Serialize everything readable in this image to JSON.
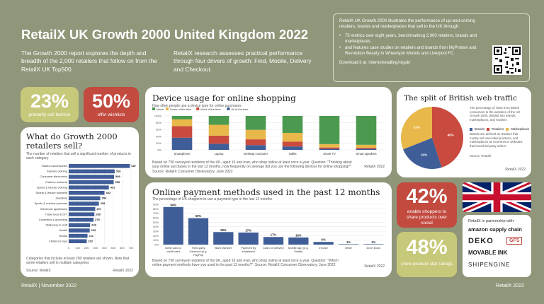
{
  "header": {
    "title": "RetailX UK Growth 2000 United Kingdom 2022",
    "intro_left": "The Growth 2000 report explores the depth and breadth of the 2,000 retailers that follow on from the RetailX UK Top500.",
    "intro_right": "RetailX research assesses practical performance through four drivers of growth: Find, Mobile, Delivery and Checkout."
  },
  "info_box": {
    "text": "RetailX UK Growth 2000 illustrates the performance of up-and-coming retailers, brands and marketplaces that sell to the UK through:",
    "bullets": [
      "75 metrics over eight years, benchmarking 2,000 retailers, brands and marketplaces.",
      "and features case studies on retailers and brands from MyProtein and Revolution Beauty to Wheelspin Models and Liverpool FC."
    ],
    "download": "Download it at: internetretailing/rxguk/"
  },
  "stats": {
    "s1": {
      "value": "23%",
      "label": "primarily sell fashion",
      "color": "#c7c97a"
    },
    "s2": {
      "value": "50%",
      "label": "offer wishlists",
      "color": "#c24a3f"
    },
    "s3": {
      "value": "42%",
      "label": "enable shoppers to share products over social",
      "color": "#c24a3f"
    },
    "s4": {
      "value": "48%",
      "label": "show product star ratings",
      "color": "#c7c97a"
    }
  },
  "categories_chart": {
    "title": "What do Growth 2000 retailers sell?",
    "subtitle": "The number of retailers that sell a significant number of products in each category",
    "note": "Categories that include at least 200 retailers are shown. Note that some retailers sell in multiple categories",
    "source": "Source: RetailX",
    "brand": "RetailX 2022"
  },
  "device_chart": {
    "title": "Device usage for online shopping",
    "subtitle": "How often people use a device type for online purchases",
    "note": "Based on 736 surveyed residents of the UK, aged 16 and over, who shop online at least once a year. Question: \"Thinking about your online purchases in the last 12 months, how frequently on average did you use the following devices for online shopping?\"",
    "source": "Source: RetailX Consumer Observatory, June 2022",
    "brand": "RetailX 2022"
  },
  "payment_chart": {
    "title": "Online payment methods used in the past 12 months",
    "subtitle": "The percentage of UK shoppers to use a payment type in the last 12 months",
    "note": "Based on 736 surveyed residents of the UK, aged 16 and over, who shop online at least once a year. Question: \"Which online payment methods have you used in the past 12 months?\". Source: RetailX Consumer Observatory, June 2022",
    "brand": "RetailX 2022"
  },
  "traffic_chart": {
    "title": "The split of British web traffic",
    "desc": "The percentage of visits from British consumers to the websites of the UK Growth 2000, divided into brands, marketplaces, and retailers",
    "note": "Brands are defined as retailers that mostly sell own-label products, and marketplaces as ecommerce websites that host third party sellers",
    "source": "Source: RetailX",
    "brand": "RetailX 2022"
  },
  "partners": {
    "title": "RetailX in partnership with:",
    "logos": [
      "amazon supply chain",
      "DEKO",
      "GFS",
      "MOVABLE INK",
      "SHIPENGINE"
    ]
  },
  "footer": {
    "left": "RetailX | November 2022",
    "right": "RetailX 2022"
  },
  "chart_data": [
    {
      "type": "bar",
      "orientation": "horizontal",
      "title": "What do Growth 2000 retailers sell?",
      "categories": [
        "Fashion accessories",
        "Fashion clothing",
        "Consumer electronics",
        "Fashion footwear",
        "Sports & leisure clothing",
        "Sports & leisure footwear",
        "Jewellery",
        "Sports & outdoor products",
        "Electronic appliances",
        "Trade tools & DIY",
        "Cosmetics & grooming",
        "Stationery & craft",
        "Health",
        "Books",
        "Children's toys"
      ],
      "values": [
        687,
        516,
        509,
        505,
        451,
        402,
        354,
        339,
        297,
        288,
        279,
        240,
        236,
        211,
        202
      ],
      "xticks": [
        0,
        100,
        200,
        300,
        400,
        500,
        600,
        700
      ],
      "xlim": [
        0,
        700
      ],
      "color": "#3f5d97"
    },
    {
      "type": "bar",
      "stacked": true,
      "title": "Device usage for online shopping",
      "categories": [
        "Smartphone",
        "Laptop",
        "Desktop computer",
        "Tablet",
        "Smart TV",
        "Smart speakers"
      ],
      "series": [
        {
          "name": "Never",
          "color": "#4b9a4f",
          "values": [
            10,
            26,
            41,
            50,
            83,
            85
          ]
        },
        {
          "name": "Some of the time",
          "color": "#e8b84a",
          "values": [
            20,
            32,
            28,
            26,
            10,
            9
          ]
        },
        {
          "name": "Most of the time",
          "color": "#c94a3e",
          "values": [
            34,
            24,
            17,
            14,
            4,
            3
          ]
        },
        {
          "name": "All of the time",
          "color": "#3f5d97",
          "values": [
            36,
            18,
            14,
            10,
            3,
            3
          ]
        }
      ],
      "yticks": [
        "0%",
        "20%",
        "40%",
        "60%",
        "80%",
        "100%"
      ],
      "ylim": [
        0,
        100
      ]
    },
    {
      "type": "bar",
      "title": "Online payment methods used in the past 12 months",
      "categories": [
        "Debit card or credit card",
        "Third-party checkout (e.g. PayPal)",
        "Bank transfer",
        "Payment by instalment",
        "Cash on delivery",
        "Mobile app (e.g. Swish)",
        "Invoice",
        "Other",
        "Don't know"
      ],
      "values": [
        84,
        59,
        28,
        27,
        17,
        16,
        6,
        1,
        1
      ],
      "labels": [
        "84%",
        "59%",
        "28%",
        "27%",
        "17%",
        "16%",
        "6%",
        "1%",
        "1%"
      ],
      "yticks": [
        "0%",
        "10%",
        "20%",
        "30%",
        "40%",
        "50%",
        "60%",
        "70%",
        "80%",
        "90%"
      ],
      "ylim": [
        0,
        90
      ],
      "color": "#3f5d97"
    },
    {
      "type": "pie",
      "title": "The split of British web traffic",
      "categories": [
        "Brands",
        "Retailers",
        "Marketplaces"
      ],
      "values": [
        24,
        45,
        31
      ],
      "labels": [
        "24%",
        "45%",
        "31%"
      ],
      "colors": [
        "#3f5d97",
        "#c94a3e",
        "#e8b84a"
      ]
    }
  ]
}
